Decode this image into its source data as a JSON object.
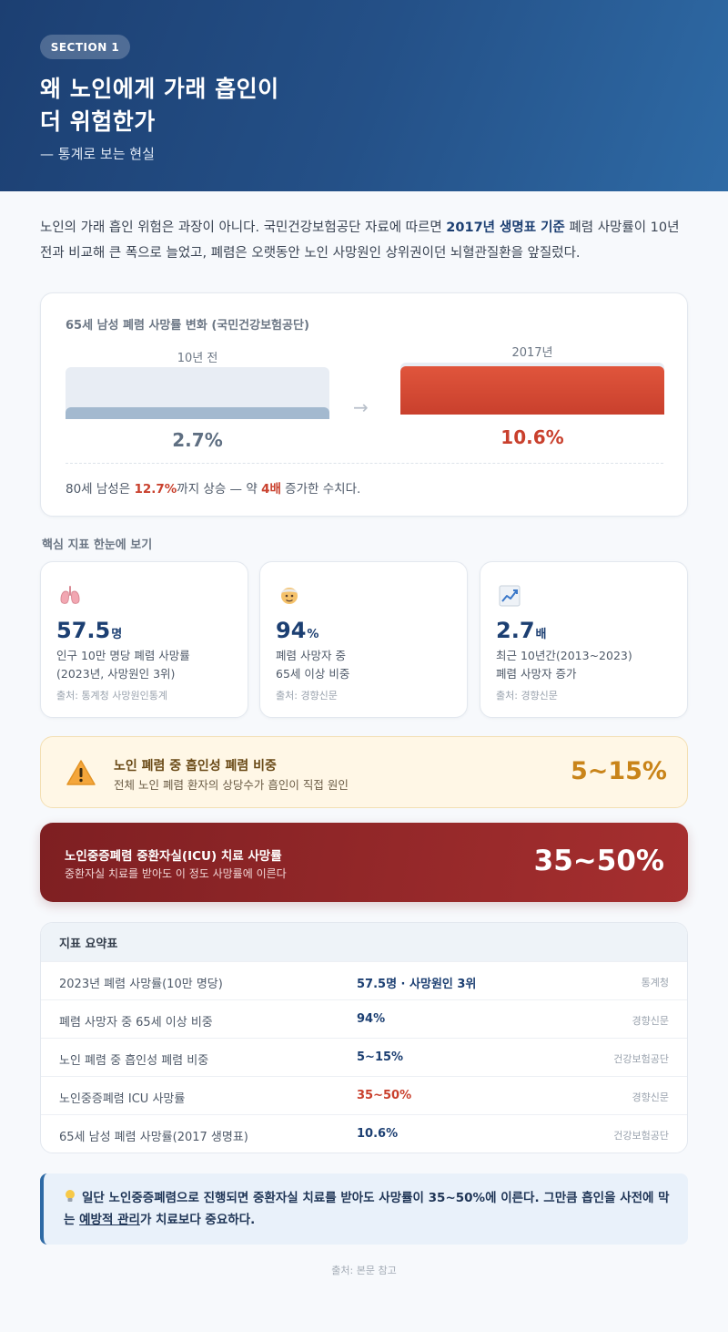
{
  "hero": {
    "badge": "SECTION 1",
    "title_line1": "왜 노인에게 가래 흡인이",
    "title_line2": "더 위험한가",
    "subtitle": "— 통계로 보는 현실"
  },
  "intro": {
    "part1": "노인의 가래 흡인 위험은 과장이 아니다. 국민건강보험공단 자료에 따르면 ",
    "bold": "2017년 생명표 기준",
    "part2": " 폐렴 사망률이 10년 전과 비교해 큰 폭으로 늘었고, 폐렴은 오랫동안 노인 사망원인 상위권이던 뇌혈관질환을 앞질렀다."
  },
  "comparison": {
    "title": "65세 남성 폐렴 사망률 변화 (국민건강보험공단)",
    "before_label": "10년 전",
    "after_label": "2017년",
    "before_value": "2.7%",
    "after_value": "10.6%",
    "before_pct": 2.7,
    "after_pct": 10.6,
    "arrow": "→",
    "note_pre": "80세 남성은 ",
    "note_bold1": "12.7%",
    "note_mid": "까지 상승 — 약 ",
    "note_bold2": "4배",
    "note_post": " 증가한 수치다."
  },
  "stats_label": "핵심 지표 한눈에 보기",
  "stats": [
    {
      "icon": "lungs-icon",
      "number": "57.5",
      "unit": "명",
      "desc1": "인구 10만 명당 폐렴 사망률",
      "desc2": "(2023년, 사망원인 3위)",
      "source": "출처: 통계청 사망원인통계"
    },
    {
      "icon": "elderly-person-icon",
      "number": "94",
      "unit": "%",
      "desc1": "폐렴 사망자 중",
      "desc2": "65세 이상 비중",
      "source": "출처: 경향신문"
    },
    {
      "icon": "chart-increasing-icon",
      "number": "2.7",
      "unit": "배",
      "desc1": "최근 10년간(2013~2023)",
      "desc2": "폐렴 사망자 증가",
      "source": "출처: 경향신문"
    }
  ],
  "warning": {
    "title": "노인 폐렴 중 흡인성 폐렴 비중",
    "desc": "전체 노인 폐렴 환자의 상당수가 흡인이 직접 원인",
    "value": "5~15%"
  },
  "danger": {
    "title": "노인중증폐렴 중환자실(ICU) 치료 사망률",
    "desc": "중환자실 치료를 받아도 이 정도 사망률에 이른다",
    "value": "35~50%"
  },
  "table": {
    "header": "지표 요약표",
    "rows": [
      {
        "label": "2023년 폐렴 사망률(10만 명당)",
        "value": "57.5명 · 사망원인 3위",
        "source": "통계청"
      },
      {
        "label": "폐렴 사망자 중 65세 이상 비중",
        "value": "94%",
        "source": "경향신문"
      },
      {
        "label": "노인 폐렴 중 흡인성 폐렴 비중",
        "value": "5~15%",
        "source": "건강보험공단"
      },
      {
        "label": "노인중증폐렴 ICU 사망률",
        "value": "35~50%",
        "source": "경향신문"
      },
      {
        "label": "65세 남성 폐렴 사망률(2017 생명표)",
        "value": "10.6%",
        "source": "건강보험공단"
      }
    ]
  },
  "callout": {
    "icon": "lightbulb-icon",
    "part1": "일단 노인중증폐렴으로 진행되면 중환자실 치료를 받아도 사망률이 35~50%에 이른다. 그만큼 흡인을 사전에 막는 ",
    "underline": "예방적 관리",
    "part2": "가 치료보다 중요하다."
  },
  "footer": "출처: 본문 참고",
  "colors": {
    "brand": "#1c3f72",
    "accent_red": "#c9402d",
    "warn": "#c98419"
  }
}
